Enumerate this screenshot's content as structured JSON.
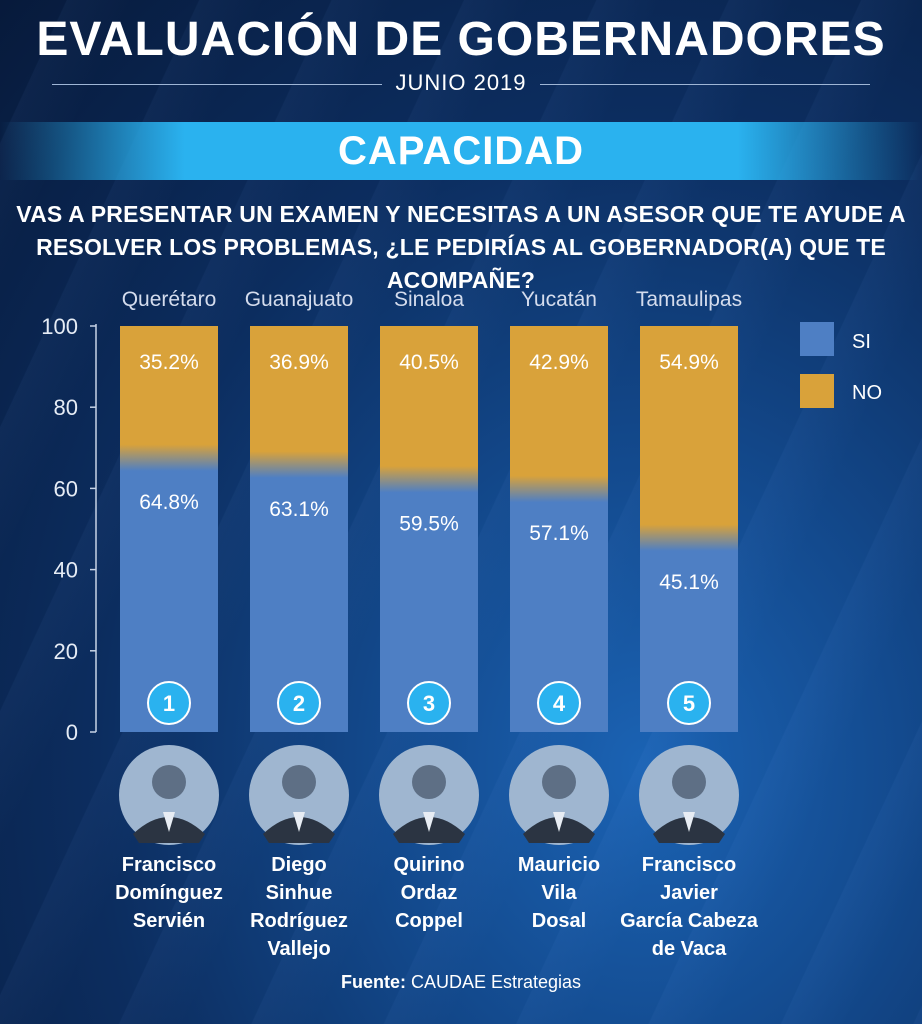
{
  "header": {
    "title": "EVALUACIÓN DE GOBERNADORES",
    "subtitle": "JUNIO 2019",
    "section": "CAPACIDAD",
    "question": "VAS A PRESENTAR UN EXAMEN Y NECESITAS A UN ASESOR QUE TE AYUDE A RESOLVER LOS PROBLEMAS, ¿LE PEDIRÍAS AL GOBERNADOR(A) QUE TE ACOMPAÑE?"
  },
  "chart_data": {
    "type": "bar",
    "stacked": true,
    "categories": [
      "Querétaro",
      "Guanajuato",
      "Sinaloa",
      "Yucatán",
      "Tamaulipas"
    ],
    "series": [
      {
        "name": "SI",
        "values": [
          64.8,
          63.1,
          59.5,
          57.1,
          45.1
        ],
        "labels": [
          "64.8%",
          "63.1%",
          "59.5%",
          "57.1%",
          "45.1%"
        ],
        "color": "#4e7fc4"
      },
      {
        "name": "NO",
        "values": [
          35.2,
          36.9,
          40.5,
          42.9,
          54.9
        ],
        "labels": [
          "35.2%",
          "36.9%",
          "40.5%",
          "42.9%",
          "54.9%"
        ],
        "color": "#d9a23a"
      }
    ],
    "ranks": [
      "1",
      "2",
      "3",
      "4",
      "5"
    ],
    "ylim": [
      0,
      100
    ],
    "yticks": [
      "0",
      "20",
      "40",
      "60",
      "80",
      "100"
    ],
    "legend_position": "top-right",
    "grid": false
  },
  "governors": [
    {
      "name_lines": [
        "Francisco",
        "Domínguez",
        "Servién"
      ]
    },
    {
      "name_lines": [
        "Diego",
        "Sinhue",
        "Rodríguez",
        "Vallejo"
      ]
    },
    {
      "name_lines": [
        "Quirino",
        "Ordaz",
        "Coppel"
      ]
    },
    {
      "name_lines": [
        "Mauricio",
        "Vila",
        "Dosal"
      ]
    },
    {
      "name_lines": [
        "Francisco",
        "Javier",
        "García Cabeza",
        "de Vaca"
      ]
    }
  ],
  "source": {
    "label": "Fuente:",
    "text": "CAUDAE Estrategias"
  },
  "colors": {
    "accent": "#2ab2ef",
    "rank_circle": "#2ab2ef",
    "background": "#0c2d5f"
  }
}
